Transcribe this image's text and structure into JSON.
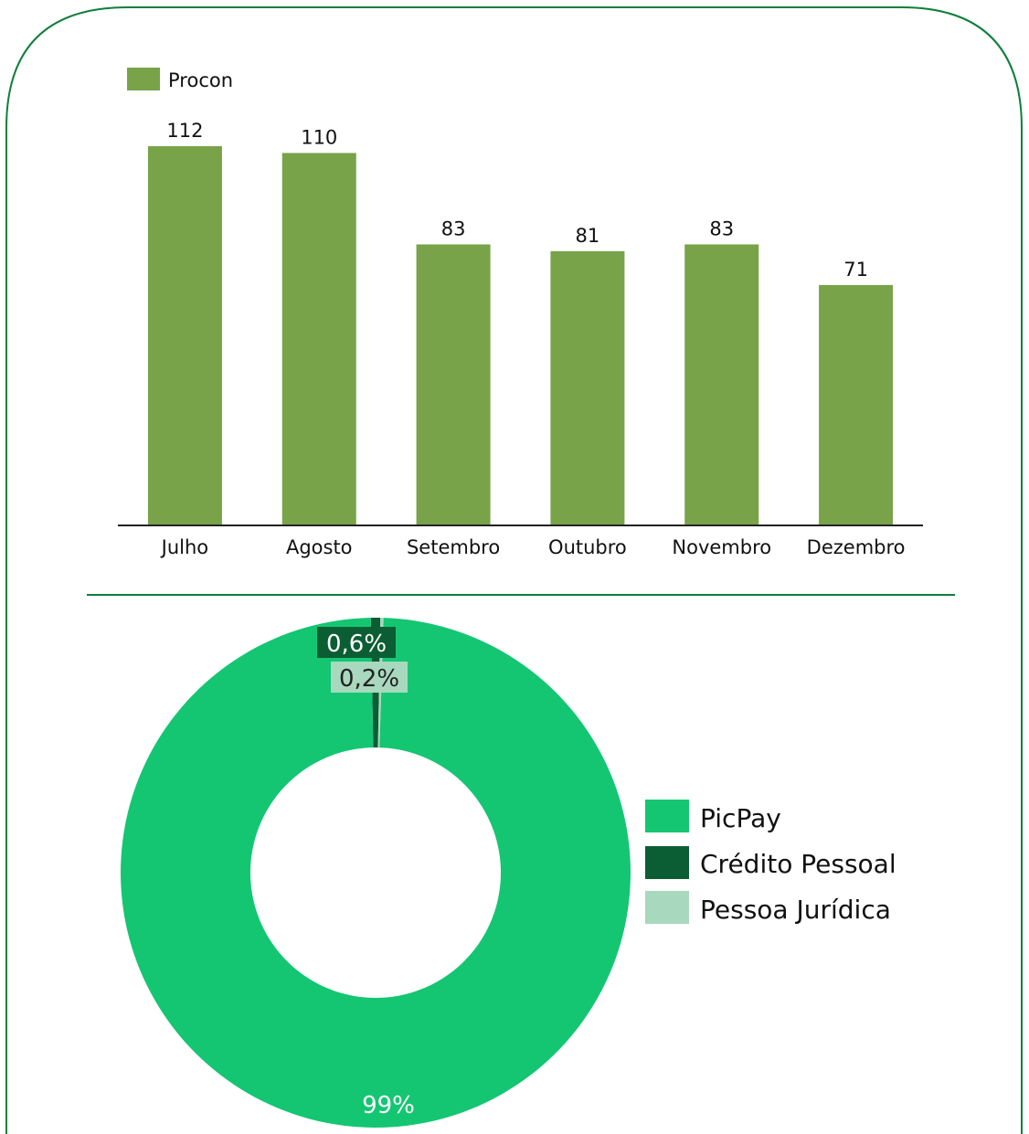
{
  "colors": {
    "frame": "#0e7f3a",
    "bar": "#78a349",
    "picpay": "#14c672",
    "credito": "#0b5e33",
    "juridica": "#a8d8bd"
  },
  "chart_data": [
    {
      "type": "bar",
      "legend": [
        "Procon"
      ],
      "categories": [
        "Julho",
        "Agosto",
        "Setembro",
        "Outubro",
        "Novembro",
        "Dezembro"
      ],
      "series": [
        {
          "name": "Procon",
          "values": [
            112,
            110,
            83,
            81,
            83,
            71
          ]
        }
      ],
      "data_labels": [
        "112",
        "110",
        "83",
        "81",
        "83",
        "71"
      ],
      "ylim": [
        0,
        112
      ],
      "grid": false,
      "legend_position": "top-left"
    },
    {
      "type": "pie",
      "donut": true,
      "categories": [
        "PicPay",
        "Crédito Pessoal",
        "Pessoa Jurídica"
      ],
      "values": [
        99.2,
        0.6,
        0.2
      ],
      "data_labels": [
        "99%",
        "0,6%",
        "0,2%"
      ],
      "legend_position": "right"
    }
  ]
}
